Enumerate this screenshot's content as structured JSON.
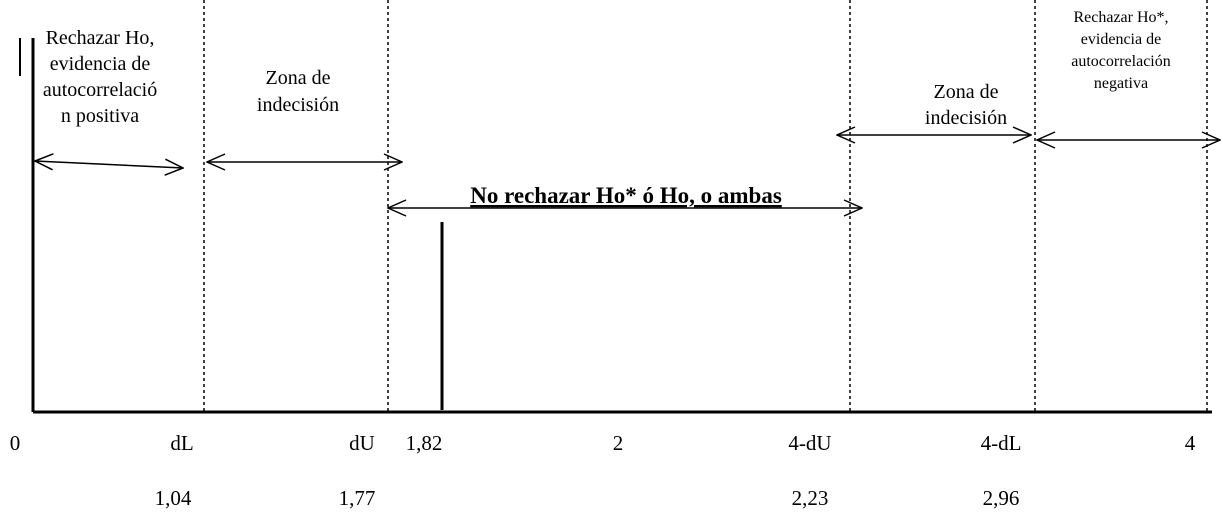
{
  "regions": [
    {
      "label": [
        "Rechazar Ho,",
        "evidencia de",
        "autocorrelació",
        "n positiva"
      ]
    },
    {
      "label": [
        "Zona de",
        "indecisión"
      ]
    },
    {
      "label": [
        "No rechazar Ho* ó Ho, o ambas"
      ]
    },
    {
      "label": [
        "Zona de",
        "indecisión"
      ]
    },
    {
      "label": [
        "Rechazar Ho*,",
        "evidencia de",
        "autocorrelación",
        "negativa"
      ]
    }
  ],
  "axis": {
    "ticks": [
      "0",
      "dL",
      "dU",
      "1,82",
      "2",
      "4-dU",
      "4-dL",
      "4"
    ],
    "values": [
      "1,04",
      "1,77",
      "2,23",
      "2,96"
    ]
  }
}
